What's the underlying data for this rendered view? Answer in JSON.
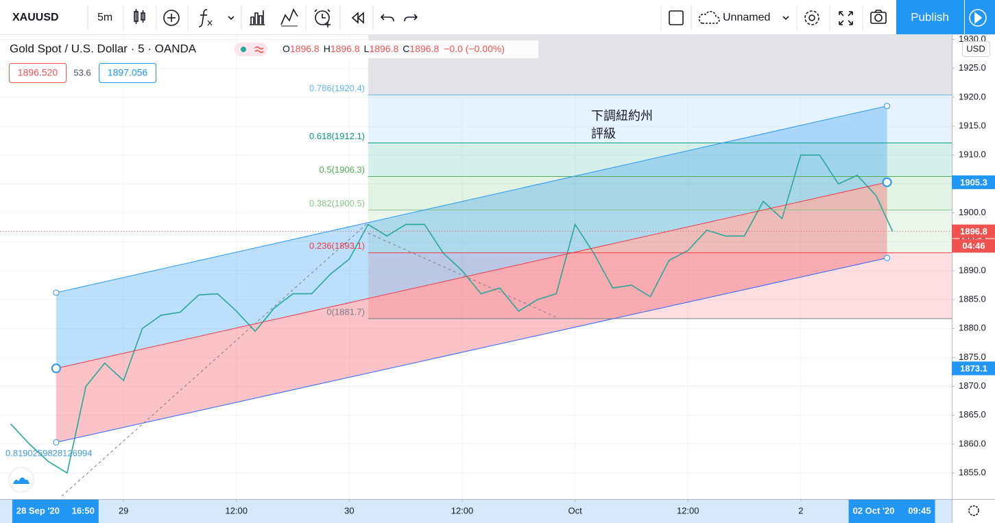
{
  "toolbar": {
    "symbol": "XAUUSD",
    "interval": "5m",
    "layout_name": "Unnamed",
    "publish": "Publish"
  },
  "legend": {
    "title": "Gold Spot / U.S. Dollar · 5 · OANDA",
    "ohlc": [
      {
        "key": "O",
        "value": "1896.8"
      },
      {
        "key": "H",
        "value": "1896.8"
      },
      {
        "key": "L",
        "value": "1896.8"
      },
      {
        "key": "C",
        "value": "1896.8"
      }
    ],
    "change": "−0.0 (−0.00%)",
    "bid": "1896.520",
    "spread": "53.6",
    "ask": "1897.056"
  },
  "chart_data": {
    "type": "line",
    "x": [
      "2020-09-28T12:00",
      "2020-09-28T14:00",
      "2020-09-28T16:00",
      "2020-09-28T18:00",
      "2020-09-28T20:00",
      "2020-09-28T22:00",
      "2020-09-29T00:00",
      "2020-09-29T02:00",
      "2020-09-29T04:00",
      "2020-09-29T06:00",
      "2020-09-29T08:00",
      "2020-09-29T10:00",
      "2020-09-29T12:00",
      "2020-09-29T14:00",
      "2020-09-29T16:00",
      "2020-09-29T18:00",
      "2020-09-29T20:00",
      "2020-09-29T22:00",
      "2020-09-30T00:00",
      "2020-09-30T02:00",
      "2020-09-30T04:00",
      "2020-09-30T06:00",
      "2020-09-30T08:00",
      "2020-09-30T10:00",
      "2020-09-30T12:00",
      "2020-09-30T14:00",
      "2020-09-30T16:00",
      "2020-09-30T18:00",
      "2020-09-30T20:00",
      "2020-09-30T22:00",
      "2020-10-01T00:00",
      "2020-10-01T02:00",
      "2020-10-01T04:00",
      "2020-10-01T06:00",
      "2020-10-01T08:00",
      "2020-10-01T10:00",
      "2020-10-01T12:00",
      "2020-10-01T14:00",
      "2020-10-01T16:00",
      "2020-10-01T18:00",
      "2020-10-01T20:00",
      "2020-10-01T22:00",
      "2020-10-02T00:00",
      "2020-10-02T02:00",
      "2020-10-02T04:00",
      "2020-10-02T06:00",
      "2020-10-02T08:00",
      "2020-10-02T09:45"
    ],
    "values": [
      1863.5,
      1860,
      1857,
      1855,
      1870,
      1874,
      1871,
      1880,
      1882.3,
      1882.8,
      1885.8,
      1886,
      1883,
      1879.5,
      1883.5,
      1886,
      1886,
      1889.4,
      1892,
      1898,
      1896,
      1898,
      1898,
      1893,
      1890,
      1886,
      1887,
      1883,
      1885,
      1886,
      1898,
      1893,
      1887,
      1887.5,
      1885.5,
      1891.8,
      1893.5,
      1897,
      1896,
      1896,
      1902,
      1899,
      1910,
      1910,
      1905,
      1906.5,
      1903,
      1896.8
    ],
    "color": "#26a69a",
    "xlim": [
      "2020-09-28T10:52",
      "2020-10-02T16:03"
    ],
    "ylim": [
      1850.5,
      1930.9
    ],
    "xticks": [
      {
        "value": "2020-09-29T00:00",
        "label": "29"
      },
      {
        "value": "2020-09-29T12:00",
        "label": "12:00"
      },
      {
        "value": "2020-09-30T00:00",
        "label": "30"
      },
      {
        "value": "2020-09-30T12:00",
        "label": "12:00"
      },
      {
        "value": "2020-10-01T00:00",
        "label": "Oct"
      },
      {
        "value": "2020-10-01T12:00",
        "label": "12:00"
      },
      {
        "value": "2020-10-02T00:00",
        "label": "2"
      }
    ],
    "yticks": [
      {
        "value": 1855,
        "label": "1855.0"
      },
      {
        "value": 1860,
        "label": "1860.0"
      },
      {
        "value": 1865,
        "label": "1865.0"
      },
      {
        "value": 1870,
        "label": "1870.0"
      },
      {
        "value": 1875,
        "label": "1875.0"
      },
      {
        "value": 1880,
        "label": "1880.0"
      },
      {
        "value": 1885,
        "label": "1885.0"
      },
      {
        "value": 1890,
        "label": "1890.0"
      },
      {
        "value": 1895,
        "label": "1895.0"
      },
      {
        "value": 1900,
        "label": "1900.0"
      },
      {
        "value": 1905,
        "label": "1905.0"
      },
      {
        "value": 1910,
        "label": "1910.0"
      },
      {
        "value": 1915,
        "label": "1915.0"
      },
      {
        "value": 1920,
        "label": "1920.0"
      },
      {
        "value": 1925,
        "label": "1925.0"
      },
      {
        "value": 1930,
        "label": "1930.0"
      }
    ],
    "grid": true,
    "currency": "USD",
    "fib_start": "2020-09-30T02:00",
    "fib_levels": [
      {
        "value": 1920.4,
        "label": "0.786(1920.4)",
        "color": "#64b5f6"
      },
      {
        "value": 1912.1,
        "label": "0.618(1912.1)",
        "color": "#089981"
      },
      {
        "value": 1906.3,
        "label": "0.5(1906.3)",
        "color": "#4caf50"
      },
      {
        "value": 1900.5,
        "label": "0.382(1900.5)",
        "color": "#81c784"
      },
      {
        "value": 1893.1,
        "label": "0.236(1893.1)",
        "color": "#f23645"
      },
      {
        "value": 1881.7,
        "label": "0(1881.7)",
        "color": "#787b86"
      }
    ],
    "channel": {
      "x": [
        "2020-09-28T16:50",
        "2020-10-02T09:10"
      ],
      "upper": [
        1886.2,
        1918.5
      ],
      "middle": [
        1873.1,
        1905.3
      ],
      "lower": [
        1860.3,
        1892.2
      ]
    },
    "trend_lines": [
      {
        "x": [
          "2020-09-28T17:26",
          "2020-09-30T02:00"
        ],
        "y": [
          1851.0,
          1898.3
        ],
        "label": "0.8190259828126994"
      },
      {
        "x": [
          "2020-09-30T02:00",
          "2020-09-30T21:57"
        ],
        "y": [
          1896.5,
          1882.0
        ]
      }
    ],
    "annotation": [
      "下調紐約州",
      "評級"
    ],
    "price_labels": [
      {
        "value": 1905.3,
        "color": "#2196f3"
      },
      {
        "value": 1873.1,
        "color": "#2196f3"
      },
      {
        "value": 1896.8,
        "color": "#ef5350"
      }
    ],
    "countdown": "04:46",
    "crosshair_x": [
      {
        "value": "2020-09-28T16:50",
        "label": "28 Sep '20",
        "time": "16:50"
      },
      {
        "value": "2020-10-02T09:45",
        "label": "02 Oct '20",
        "time": "09:45"
      }
    ]
  }
}
